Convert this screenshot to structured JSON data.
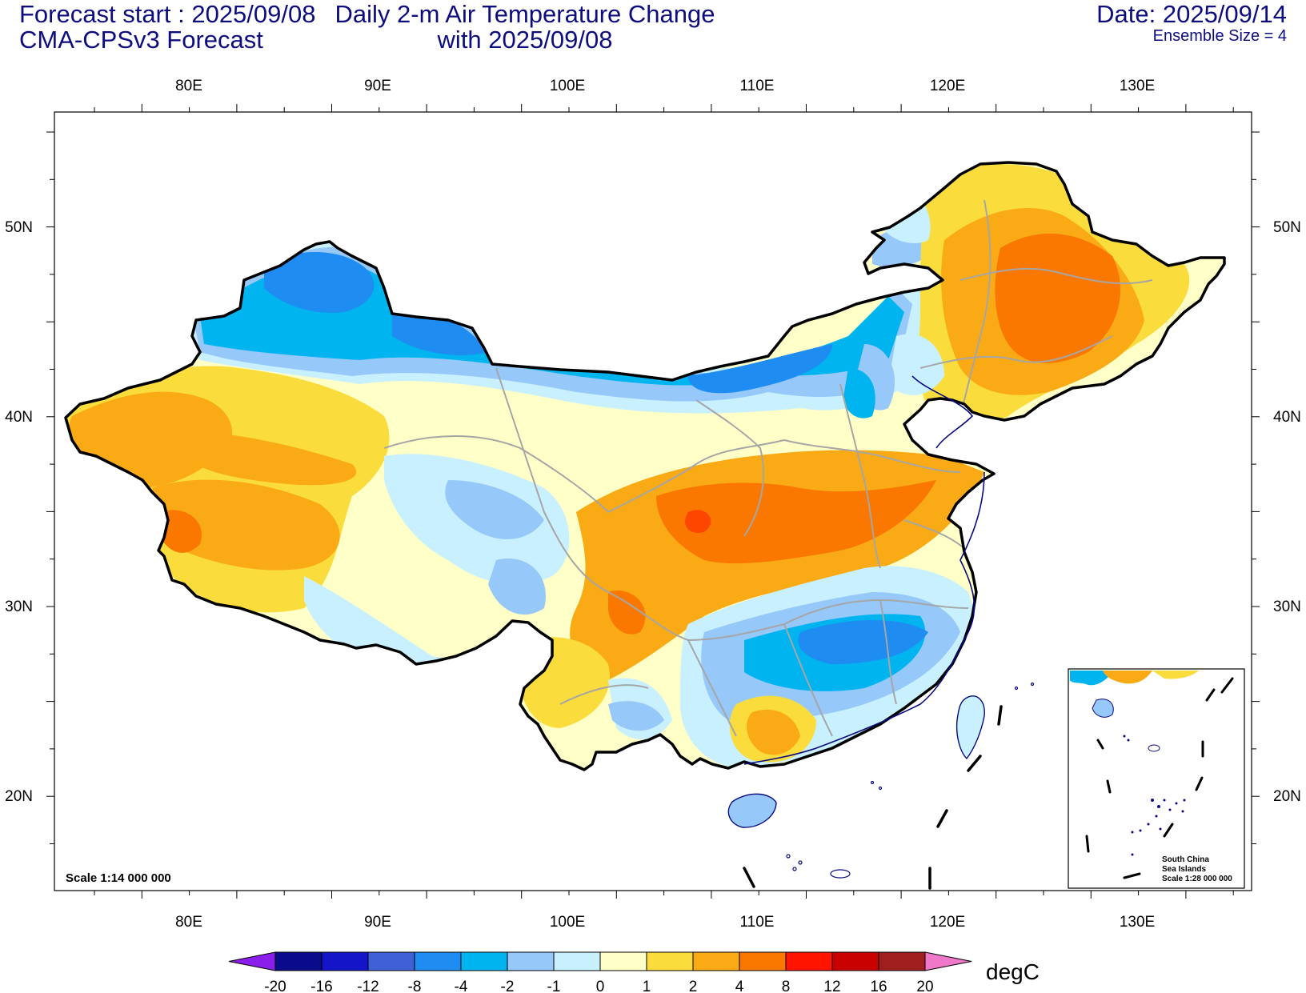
{
  "header": {
    "forecast_start": "Forecast start : 2025/09/08",
    "model": "CMA-CPSv3 Forecast",
    "title_line1": "Daily 2-m Air Temperature Change",
    "title_line2": "with 2025/09/08",
    "date": "Date: 2025/09/14",
    "ensemble": "Ensemble Size = 4"
  },
  "axes": {
    "lon_labels": [
      "80E",
      "90E",
      "100E",
      "110E",
      "120E",
      "130E"
    ],
    "lat_labels": [
      "50N",
      "40N",
      "30N",
      "20N"
    ]
  },
  "scale_note": "Scale 1:14 000 000",
  "inset": {
    "title1": "South China",
    "title2": "Sea Islands",
    "scale": "Scale 1:28 000 000"
  },
  "colorbar": {
    "unit": "degC",
    "labels": [
      "-20",
      "-16",
      "-12",
      "-8",
      "-4",
      "-2",
      "-1",
      "0",
      "1",
      "2",
      "4",
      "8",
      "12",
      "16",
      "20"
    ],
    "colors": [
      "#0a0a8c",
      "#1414c8",
      "#4060d8",
      "#1e8cf0",
      "#00b4f0",
      "#96c8fa",
      "#c8f0ff",
      "#ffffc8",
      "#fadc3c",
      "#faaa14",
      "#fa7800",
      "#ff1400",
      "#c80000",
      "#a01e1e"
    ],
    "left_tip_color": "#8c1eeb",
    "right_tip_color": "#f078c8"
  },
  "map_colors": {
    "border": "#000000",
    "province": "#a6a6a6",
    "coast": "#0a0a80"
  }
}
